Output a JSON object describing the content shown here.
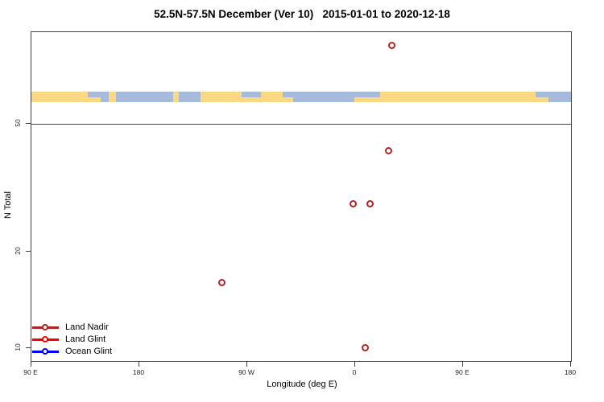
{
  "title": "52.5N-57.5N December (Ver 10)   2015-01-01 to 2020-12-18",
  "chart_data": {
    "type": "scatter",
    "title": "52.5N-57.5N December (Ver 10)   2015-01-01 to 2020-12-18",
    "xlabel": "Longitude (deg E)",
    "ylabel": "N Total",
    "x_axis": {
      "min": 90,
      "max": 540,
      "ticks": [
        {
          "value": 90,
          "label": "90 E"
        },
        {
          "value": 180,
          "label": "180"
        },
        {
          "value": 270,
          "label": "90 W"
        },
        {
          "value": 360,
          "label": "0"
        },
        {
          "value": 450,
          "label": "90 E"
        },
        {
          "value": 540,
          "label": "180"
        }
      ]
    },
    "y_axis": {
      "scale": "log",
      "min": 9.13,
      "max": 96.2,
      "ticks": [
        {
          "value": 50,
          "label": "50"
        },
        {
          "value": 20,
          "label": "20"
        },
        {
          "value": 10,
          "label": "10"
        }
      ]
    },
    "reference_line_y": 50,
    "grid": "off",
    "legend_position": "bottom-left",
    "series": [
      {
        "name": "Land Nadir",
        "color": "#B22222",
        "points": [
          {
            "lon": 391.0,
            "n": 87
          },
          {
            "lon": 388.0,
            "n": 41
          },
          {
            "lon": 358.5,
            "n": 28
          },
          {
            "lon": 372.5,
            "n": 28
          },
          {
            "lon": 249.5,
            "n": 16
          },
          {
            "lon": 368.5,
            "n": 10
          }
        ]
      },
      {
        "name": "Land Glint",
        "color": "#FF0000",
        "points": []
      },
      {
        "name": "Ocean Glint",
        "color": "#0000FF",
        "points": []
      }
    ],
    "map_strip": {
      "description": "land/ocean band along 52.5N-57.5N",
      "land_color": "#FAD884",
      "ocean_color": "#A6BBDC",
      "segments": [
        {
          "from": 0.0,
          "to": 10.5,
          "kind": "land"
        },
        {
          "from": 10.5,
          "to": 12.8,
          "kind": "coast"
        },
        {
          "from": 12.8,
          "to": 14.4,
          "kind": "ocean"
        },
        {
          "from": 14.4,
          "to": 15.6,
          "kind": "land"
        },
        {
          "from": 15.6,
          "to": 26.3,
          "kind": "ocean"
        },
        {
          "from": 26.3,
          "to": 27.3,
          "kind": "land"
        },
        {
          "from": 27.3,
          "to": 31.3,
          "kind": "ocean"
        },
        {
          "from": 31.3,
          "to": 39.0,
          "kind": "land"
        },
        {
          "from": 39.0,
          "to": 42.5,
          "kind": "coast"
        },
        {
          "from": 42.5,
          "to": 46.5,
          "kind": "land"
        },
        {
          "from": 46.5,
          "to": 48.5,
          "kind": "coast"
        },
        {
          "from": 48.5,
          "to": 59.8,
          "kind": "ocean"
        },
        {
          "from": 59.8,
          "to": 64.7,
          "kind": "coast"
        },
        {
          "from": 64.7,
          "to": 93.5,
          "kind": "land"
        },
        {
          "from": 93.5,
          "to": 95.8,
          "kind": "coast"
        },
        {
          "from": 95.8,
          "to": 100.0,
          "kind": "ocean"
        }
      ]
    }
  }
}
